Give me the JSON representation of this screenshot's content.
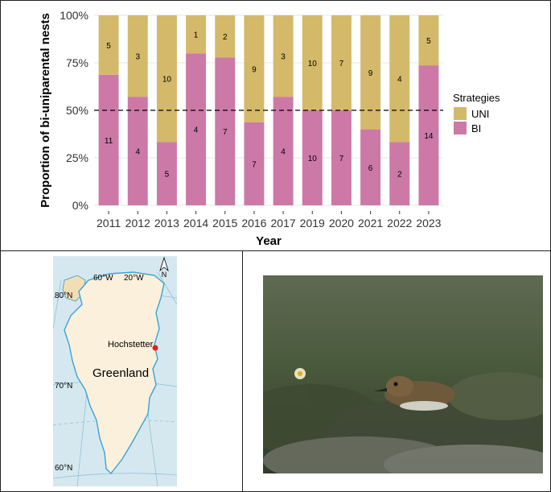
{
  "chart_data": {
    "type": "bar",
    "stacked": true,
    "normalized": true,
    "categories": [
      "2011",
      "2012",
      "2013",
      "2014",
      "2015",
      "2016",
      "2017",
      "2019",
      "2020",
      "2021",
      "2022",
      "2023"
    ],
    "series": [
      {
        "name": "BI",
        "color": "#cc79a7",
        "values": [
          11,
          4,
          5,
          4,
          7,
          7,
          4,
          10,
          7,
          6,
          2,
          14
        ]
      },
      {
        "name": "UNI",
        "color": "#d4b96a",
        "values": [
          5,
          3,
          10,
          1,
          2,
          9,
          3,
          10,
          7,
          9,
          4,
          5
        ]
      }
    ],
    "xlabel": "Year",
    "ylabel": "Proportion of bi-uniparental nests",
    "yticks": [
      "0%",
      "25%",
      "50%",
      "75%",
      "100%"
    ],
    "ylim": [
      0,
      1
    ],
    "reference_line": 0.5,
    "legend": {
      "title": "Strategies",
      "position": "right",
      "items": [
        "UNI",
        "BI"
      ]
    }
  },
  "map": {
    "region_label": "Greenland",
    "site_label": "Hochstetter",
    "lon_labels": [
      "60°W",
      "20°W"
    ],
    "lat_labels": [
      "80°N",
      "70°N",
      "60°N"
    ],
    "north_label": "N",
    "ocean_color": "#d6e8ef",
    "land_color": "#faf0dc",
    "site_color": "#e02020"
  },
  "photo": {
    "subject": "shorebird on nest in tundra"
  }
}
